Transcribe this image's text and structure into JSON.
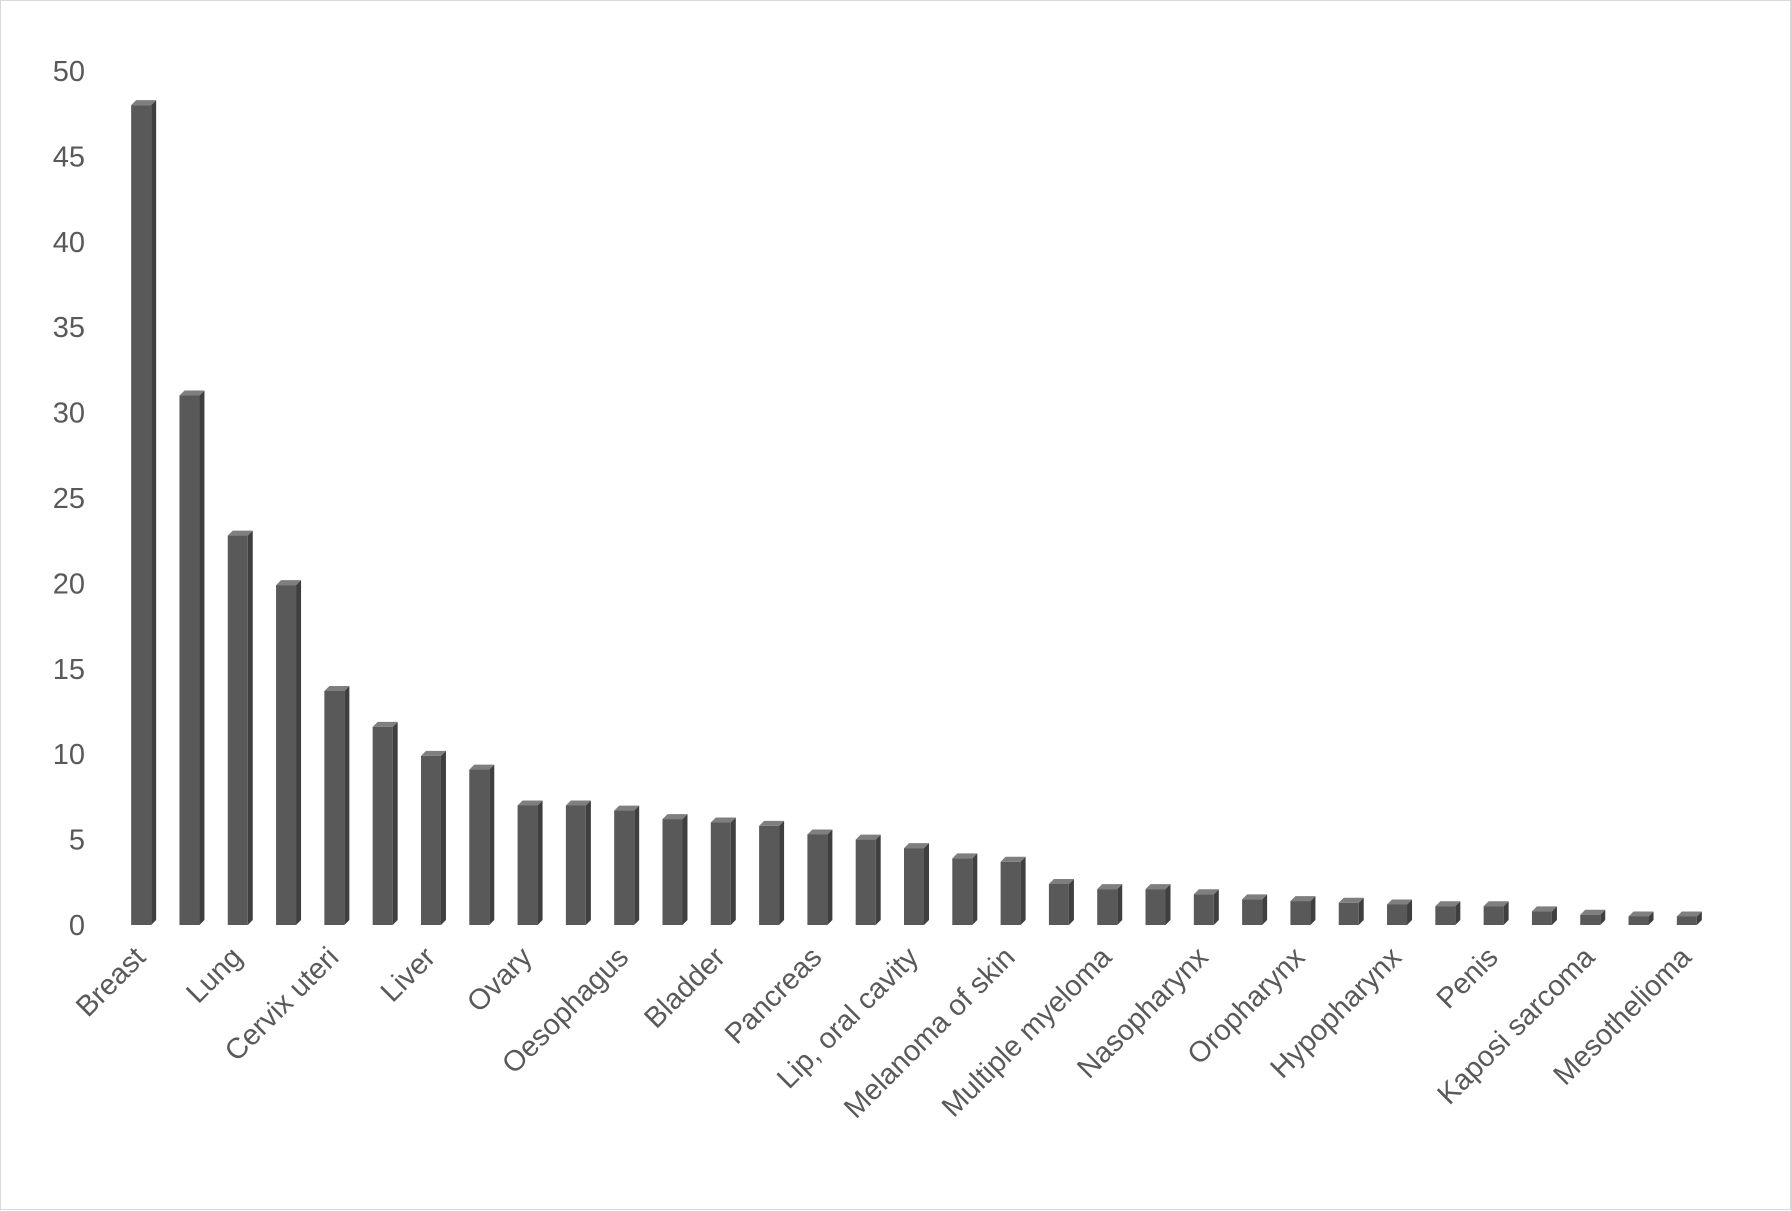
{
  "chart_data": {
    "type": "bar",
    "title": "",
    "xlabel": "",
    "ylabel": "",
    "ylim": [
      0,
      50
    ],
    "yticks": [
      0,
      5,
      10,
      15,
      20,
      25,
      30,
      35,
      40,
      45,
      50
    ],
    "grid": false,
    "legend": "none",
    "bar_color": "#595959",
    "categories": [
      "Breast",
      "",
      "Lung",
      "",
      "Cervix uteri",
      "",
      "Liver",
      "",
      "Ovary",
      "",
      "Oesophagus",
      "",
      "Bladder",
      "",
      "Pancreas",
      "",
      "Lip, oral cavity",
      "",
      "Melanoma of skin",
      "",
      "Multiple myeloma",
      "",
      "Nasopharynx",
      "",
      "Oropharynx",
      "",
      "Hypopharynx",
      "",
      "Penis",
      "",
      "Kaposi sarcoma",
      "",
      "Mesothelioma"
    ],
    "values": [
      48.0,
      31.0,
      22.8,
      19.9,
      13.7,
      11.6,
      9.9,
      9.1,
      7.0,
      7.0,
      6.7,
      6.2,
      6.0,
      5.8,
      5.3,
      5.0,
      4.5,
      3.9,
      3.7,
      2.4,
      2.1,
      2.1,
      1.8,
      1.5,
      1.4,
      1.3,
      1.2,
      1.1,
      1.1,
      0.8,
      0.6,
      0.5,
      0.5
    ]
  }
}
